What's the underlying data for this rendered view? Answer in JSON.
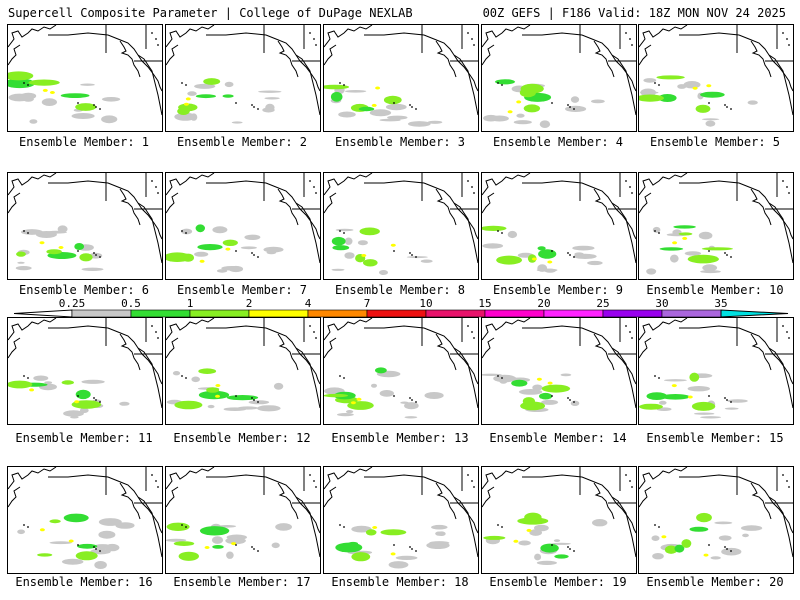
{
  "header": {
    "title": "Supercell Composite Parameter | College of DuPage NEXLAB",
    "run_info": "00Z GEFS | F186 Valid: 18Z MON NOV 24 2025"
  },
  "caption_prefix": "Ensemble Member:",
  "members": [
    {
      "label": "Ensemble Member: 1"
    },
    {
      "label": "Ensemble Member: 2"
    },
    {
      "label": "Ensemble Member: 3"
    },
    {
      "label": "Ensemble Member: 4"
    },
    {
      "label": "Ensemble Member: 5"
    },
    {
      "label": "Ensemble Member: 6"
    },
    {
      "label": "Ensemble Member: 7"
    },
    {
      "label": "Ensemble Member: 8"
    },
    {
      "label": "Ensemble Member: 9"
    },
    {
      "label": "Ensemble Member: 10"
    },
    {
      "label": "Ensemble Member: 11"
    },
    {
      "label": "Ensemble Member: 12"
    },
    {
      "label": "Ensemble Member: 13"
    },
    {
      "label": "Ensemble Member: 14"
    },
    {
      "label": "Ensemble Member: 15"
    },
    {
      "label": "Ensemble Member: 16"
    },
    {
      "label": "Ensemble Member: 17"
    },
    {
      "label": "Ensemble Member: 18"
    },
    {
      "label": "Ensemble Member: 19"
    },
    {
      "label": "Ensemble Member: 20"
    }
  ],
  "legend": {
    "ticks": [
      "0.25",
      "0.5",
      "1",
      "2",
      "4",
      "7",
      "10",
      "15",
      "20",
      "25",
      "30",
      "35"
    ],
    "colors": [
      "#c8c8c8",
      "#33dd33",
      "#88ee22",
      "#ffff00",
      "#ff8800",
      "#ee1111",
      "#e8136b",
      "#ff00cc",
      "#ff22ff",
      "#9900ee",
      "#aa66dd"
    ],
    "arrow_left_color": "#ffffff",
    "arrow_right_color": "#00e0e0"
  }
}
